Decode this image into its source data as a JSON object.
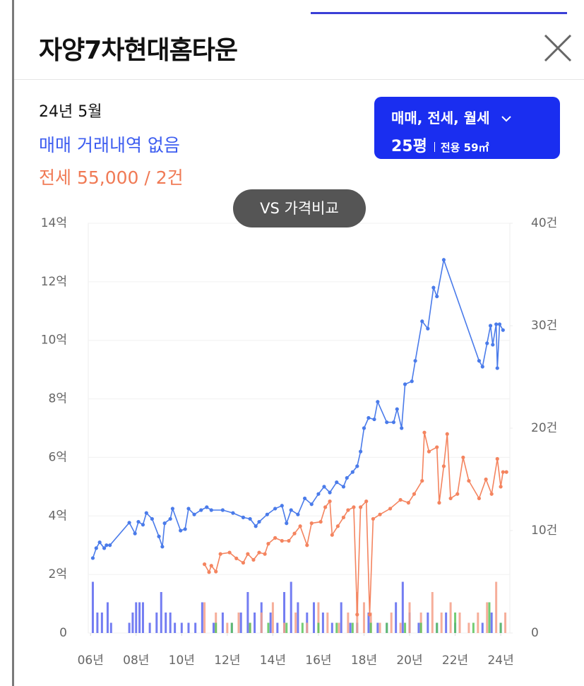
{
  "header": {
    "title": "자양7차현대홈타운"
  },
  "summary": {
    "date": "24년 5월",
    "sale": "매매 거래내역 없음",
    "jeonse": "전세 55,000 / 2건"
  },
  "filter": {
    "types": "매매, 전세, 월세",
    "size": "25평",
    "area": "전용 59㎡"
  },
  "compare_button": "VS 가격비교",
  "chart_data": {
    "type": "line",
    "xlim": [
      2005.9,
      2024.4
    ],
    "xticks": [
      {
        "value": 2006,
        "label": "06년"
      },
      {
        "value": 2008,
        "label": "08년"
      },
      {
        "value": 2010,
        "label": "10년"
      },
      {
        "value": 2012,
        "label": "12년"
      },
      {
        "value": 2014,
        "label": "14년"
      },
      {
        "value": 2016,
        "label": "16년"
      },
      {
        "value": 2018,
        "label": "18년"
      },
      {
        "value": 2020,
        "label": "20년"
      },
      {
        "value": 2022,
        "label": "22년"
      },
      {
        "value": 2024,
        "label": "24년"
      }
    ],
    "ylim": [
      0,
      14
    ],
    "yticks": [
      0,
      {
        "value": 2,
        "label": "2억"
      },
      {
        "value": 4,
        "label": "4억"
      },
      {
        "value": 6,
        "label": "6억"
      },
      {
        "value": 8,
        "label": "8억"
      },
      {
        "value": 10,
        "label": "10억"
      },
      {
        "value": 12,
        "label": "12억"
      },
      {
        "value": 14,
        "label": "14억"
      }
    ],
    "y2lim": [
      0,
      40
    ],
    "y2ticks": [
      0,
      {
        "value": 10,
        "label": "10건"
      },
      {
        "value": 20,
        "label": "20건"
      },
      {
        "value": 30,
        "label": "30건"
      },
      {
        "value": 40,
        "label": "40건"
      }
    ],
    "grid": true,
    "series": [
      {
        "type": "bar",
        "axis": "y2",
        "color": "#5a66f0",
        "x": [
          2006.1,
          2006.3,
          2006.5,
          2006.75,
          2006.9,
          2007.7,
          2007.85,
          2008.0,
          2008.15,
          2008.3,
          2008.6,
          2008.9,
          2009.1,
          2009.3,
          2009.5,
          2009.7,
          2010.0,
          2010.3,
          2010.6,
          2010.9,
          2011.4,
          2011.8,
          2012.2,
          2012.6,
          2012.9,
          2013.2,
          2013.5,
          2013.9,
          2014.2,
          2014.5,
          2014.8,
          2015.1,
          2015.5,
          2015.8,
          2016.2,
          2016.6,
          2017.0,
          2017.4,
          2017.7,
          2018.2,
          2018.6,
          2019.0,
          2019.4,
          2019.7,
          2020.0,
          2020.4,
          2020.8,
          2021.2,
          2021.6,
          2022.0,
          2023.2,
          2023.6,
          2024.0
        ],
        "values": [
          5,
          2,
          2,
          3,
          1,
          1,
          2,
          3,
          3,
          3,
          1,
          2,
          4,
          2,
          2,
          1,
          1,
          1,
          1,
          3,
          1,
          2,
          1,
          2,
          4,
          2,
          3,
          2,
          1,
          4,
          5,
          3,
          2,
          3,
          2,
          1,
          3,
          1,
          1,
          2,
          1,
          1,
          3,
          5,
          2,
          1,
          2,
          1,
          2,
          1,
          1,
          2,
          1
        ]
      },
      {
        "type": "bar",
        "axis": "y2",
        "color": "#f5a088",
        "x": [
          2011.0,
          2011.5,
          2012.0,
          2012.5,
          2013.0,
          2013.5,
          2014.0,
          2014.5,
          2015.0,
          2015.5,
          2016.0,
          2016.4,
          2016.9,
          2017.3,
          2017.7,
          2018.0,
          2018.3,
          2018.7,
          2019.2,
          2019.6,
          2020.0,
          2020.5,
          2021.0,
          2021.4,
          2021.8,
          2022.2,
          2022.6,
          2023.0,
          2023.4,
          2023.8,
          2024.2
        ],
        "values": [
          3,
          2,
          1,
          2,
          1,
          2,
          3,
          1,
          2,
          1,
          3,
          2,
          1,
          2,
          4,
          3,
          2,
          1,
          2,
          1,
          3,
          2,
          4,
          2,
          3,
          2,
          1,
          2,
          3,
          5,
          2
        ]
      },
      {
        "type": "bar",
        "axis": "y2",
        "color": "#5cc45c",
        "x": [
          2011.5,
          2012.2,
          2013.0,
          2013.8,
          2014.6,
          2015.3,
          2016.0,
          2016.8,
          2017.5,
          2018.3,
          2019.0,
          2019.8,
          2020.5,
          2021.2,
          2022.0,
          2022.8,
          2023.5,
          2024.0
        ],
        "values": [
          1,
          1,
          1,
          1,
          1,
          1,
          1,
          1,
          1,
          1,
          1,
          1,
          1,
          1,
          2,
          1,
          3,
          1
        ]
      },
      {
        "type": "line",
        "color": "#4a7bea",
        "x": [
          2006.1,
          2006.25,
          2006.4,
          2006.6,
          2006.7,
          2006.85,
          2007.7,
          2007.95,
          2008.1,
          2008.3,
          2008.45,
          2008.7,
          2009.0,
          2009.15,
          2009.25,
          2009.5,
          2009.6,
          2009.95,
          2010.15,
          2010.3,
          2010.55,
          2010.85,
          2011.1,
          2011.3,
          2011.8,
          2012.25,
          2012.7,
          2013.0,
          2013.25,
          2013.4,
          2013.75,
          2014.1,
          2014.4,
          2014.6,
          2014.8,
          2015.1,
          2015.4,
          2015.7,
          2016.0,
          2016.25,
          2016.5,
          2016.8,
          2017.1,
          2017.25,
          2017.5,
          2017.7,
          2017.85,
          2018.0,
          2018.2,
          2018.45,
          2018.6,
          2019.0,
          2019.3,
          2019.45,
          2019.65,
          2019.8,
          2020.1,
          2020.25,
          2020.55,
          2020.8,
          2021.05,
          2021.2,
          2021.5,
          2023.05,
          2023.2,
          2023.4,
          2023.55,
          2023.65,
          2023.8,
          2023.85,
          2023.95,
          2024.1
        ],
        "values": [
          2.56,
          2.9,
          3.1,
          2.9,
          3.0,
          3.0,
          3.77,
          3.4,
          3.8,
          3.7,
          4.1,
          3.9,
          3.3,
          2.95,
          3.75,
          3.9,
          4.25,
          3.5,
          3.55,
          4.25,
          4.05,
          4.2,
          4.3,
          4.2,
          4.2,
          4.1,
          3.95,
          3.9,
          3.65,
          3.8,
          4.05,
          4.25,
          4.35,
          3.75,
          4.2,
          4.05,
          4.6,
          4.4,
          4.75,
          5.0,
          4.8,
          5.15,
          5.0,
          5.3,
          5.5,
          5.7,
          6.2,
          7.0,
          7.35,
          7.3,
          7.9,
          7.2,
          7.2,
          7.65,
          7.0,
          8.5,
          8.6,
          9.3,
          10.65,
          10.4,
          11.8,
          11.5,
          12.75,
          9.3,
          9.1,
          9.9,
          10.5,
          9.85,
          10.55,
          9.05,
          10.55,
          10.35
        ]
      },
      {
        "type": "line",
        "color": "#f4845f",
        "x": [
          2011.0,
          2011.2,
          2011.3,
          2011.5,
          2011.7,
          2012.1,
          2012.4,
          2012.7,
          2012.9,
          2013.15,
          2013.4,
          2013.65,
          2013.8,
          2014.1,
          2014.4,
          2014.7,
          2014.95,
          2015.2,
          2015.5,
          2015.7,
          2016.1,
          2016.3,
          2016.5,
          2016.6,
          2016.85,
          2017.1,
          2017.3,
          2017.55,
          2017.7,
          2017.85,
          2018.1,
          2018.25,
          2018.4,
          2018.7,
          2019.15,
          2019.6,
          2019.95,
          2020.2,
          2020.55,
          2020.65,
          2020.85,
          2021.2,
          2021.3,
          2021.5,
          2021.65,
          2021.8,
          2022.1,
          2022.35,
          2022.6,
          2023.05,
          2023.35,
          2023.6,
          2023.85,
          2024.0,
          2024.1,
          2024.25
        ],
        "values": [
          2.35,
          2.08,
          2.3,
          2.1,
          2.7,
          2.75,
          2.55,
          2.4,
          2.7,
          2.5,
          2.75,
          2.7,
          3.05,
          3.25,
          3.15,
          3.15,
          3.4,
          3.65,
          3.0,
          3.75,
          3.8,
          4.3,
          4.5,
          3.35,
          3.65,
          3.95,
          4.2,
          4.3,
          0.63,
          4.3,
          4.5,
          0.63,
          3.9,
          4.05,
          4.25,
          4.55,
          4.45,
          4.75,
          5.2,
          6.85,
          6.2,
          6.35,
          4.45,
          5.7,
          6.8,
          4.6,
          4.75,
          6.0,
          5.2,
          4.6,
          5.25,
          4.75,
          5.95,
          5.0,
          5.5,
          5.5
        ]
      }
    ]
  }
}
